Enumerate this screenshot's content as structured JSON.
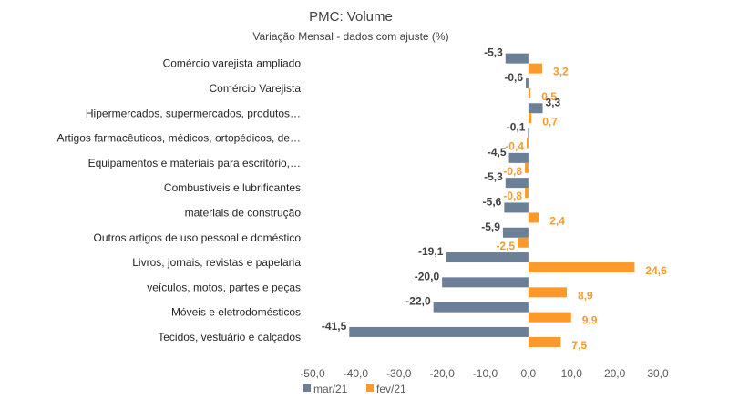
{
  "chart_data": {
    "type": "bar",
    "orientation": "horizontal",
    "title": "PMC: Volume",
    "subtitle": "Variação Mensal - dados com ajuste (%)",
    "categories": [
      "Comércio varejista ampliado",
      "Comércio Varejista",
      "Hipermercados, supermercados, produtos…",
      "Artigos farmacêuticos, médicos, ortopédicos, de…",
      "Equipamentos e materiais para escritório,…",
      "Combustíveis e lubrificantes",
      "materiais de construção",
      "Outros artigos de uso pessoal e doméstico",
      "Livros, jornais, revistas e papelaria",
      "veículos, motos, partes e peças",
      "Móveis e eletrodomésticos",
      "Tecidos, vestuário e calçados"
    ],
    "series": [
      {
        "name": "mar/21",
        "color": "#6b7f97",
        "values": [
          -5.3,
          -0.6,
          3.3,
          -0.1,
          -4.5,
          -5.3,
          -5.6,
          -5.9,
          -19.1,
          -20.0,
          -22.0,
          -41.5
        ],
        "labels": [
          "-5,3",
          "-0,6",
          "3,3",
          "-0,1",
          "-4,5",
          "-5,3",
          "-5,6",
          "-5,9",
          "-19,1",
          "-20,0",
          "-22,0",
          "-41,5"
        ]
      },
      {
        "name": "fev/21",
        "color": "#f99a2a",
        "values": [
          3.2,
          0.5,
          0.7,
          -0.4,
          -0.8,
          -0.8,
          2.4,
          -2.5,
          24.6,
          8.9,
          9.9,
          7.5
        ],
        "labels": [
          "3,2",
          "0,5",
          "0,7",
          "-0,4",
          "-0,8",
          "-0,8",
          "2,4",
          "-2,5",
          "24,6",
          "8,9",
          "9,9",
          "7,5"
        ]
      }
    ],
    "xlim": [
      -50,
      30
    ],
    "x_ticks": [
      -50,
      -40,
      -30,
      -20,
      -10,
      0,
      10,
      20,
      30
    ],
    "x_tick_labels": [
      "-50,0",
      "-40,0",
      "-30,0",
      "-20,0",
      "-10,0",
      "0,0",
      "10,0",
      "20,0",
      "30,0"
    ],
    "grid": false,
    "legend": "bottom"
  }
}
